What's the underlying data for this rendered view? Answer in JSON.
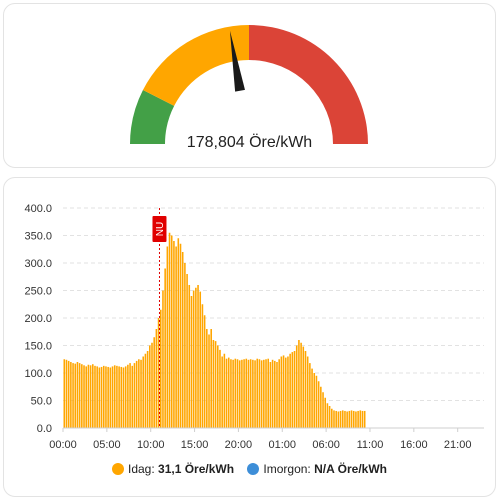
{
  "gauge": {
    "value_text": "178,804 Öre/kWh",
    "value": 178.804,
    "min": 0,
    "max": 400,
    "segments": [
      {
        "from": 0,
        "to": 60,
        "color": "#43a047"
      },
      {
        "from": 60,
        "to": 200,
        "color": "#ffa600"
      },
      {
        "from": 200,
        "to": 400,
        "color": "#db4437"
      }
    ],
    "needle_color": "#1a1a1a"
  },
  "chart": {
    "now_label": "NU",
    "now_color": "#e00000",
    "bar_color": "#ffa600",
    "legend": [
      {
        "prefix": "Idag: ",
        "value": "31,1 Öre/kWh",
        "color": "#ffa600"
      },
      {
        "prefix": "Imorgon: ",
        "value": "N/A Öre/kWh",
        "color": "#3d8ed8"
      }
    ]
  },
  "chart_data": {
    "type": "bar",
    "x_tick_labels": [
      "00:00",
      "05:00",
      "10:00",
      "15:00",
      "20:00",
      "01:00",
      "06:00",
      "11:00",
      "16:00",
      "21:00"
    ],
    "y_tick_labels": [
      "0.0",
      "50.0",
      "100.0",
      "150.0",
      "200.0",
      "250.0",
      "300.0",
      "350.0",
      "400.0"
    ],
    "ylim": [
      0,
      400
    ],
    "x_range_hours": [
      0,
      48
    ],
    "now_hour": 11.0,
    "grid": true,
    "legend_position": "bottom",
    "bar_start_hour": 0,
    "bar_step_hours": 0.25,
    "series": [
      {
        "name": "Idag",
        "values": [
          125,
          124,
          122,
          120,
          118,
          117,
          120,
          118,
          116,
          114,
          112,
          115,
          114,
          116,
          113,
          112,
          110,
          111,
          113,
          112,
          111,
          110,
          112,
          114,
          113,
          112,
          111,
          110,
          112,
          115,
          118,
          113,
          118,
          122,
          125,
          124,
          130,
          135,
          140,
          150,
          155,
          165,
          180,
          200,
          215,
          250,
          290,
          330,
          355,
          350,
          340,
          330,
          345,
          335,
          320,
          300,
          280,
          260,
          240,
          250,
          255,
          260,
          248,
          225,
          205,
          180,
          170,
          180,
          160,
          158,
          150,
          142,
          130,
          135,
          126,
          128,
          125,
          124,
          126,
          125,
          123,
          124,
          125,
          126,
          124,
          125,
          124,
          123,
          126,
          125,
          123,
          124,
          125,
          126,
          120,
          124,
          122,
          120,
          125,
          130,
          132,
          128,
          130,
          135,
          138,
          140,
          150,
          160,
          155,
          148,
          140,
          130,
          118,
          108,
          100,
          95,
          85,
          75,
          65,
          55,
          45,
          40,
          35,
          32,
          31,
          30,
          31,
          32,
          31,
          30,
          31,
          32,
          31,
          30,
          31,
          32,
          31,
          31
        ]
      }
    ]
  }
}
